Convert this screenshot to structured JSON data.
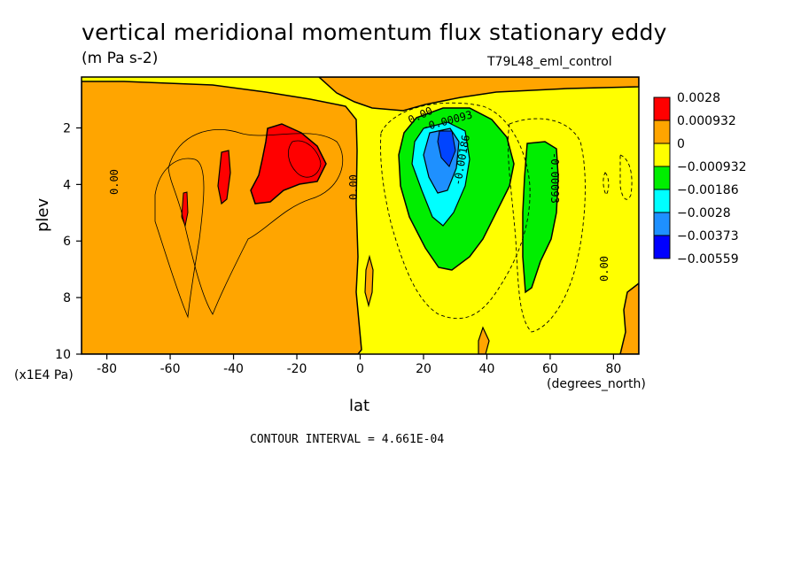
{
  "chart_data": {
    "type": "heatmap",
    "title": "vertical meridional momentum flux stationary eddy",
    "units": "(m Pa s-2)",
    "run_label": "T79L48_eml_control",
    "xlabel": "lat",
    "x_units": "(degrees_north)",
    "ylabel": "plev",
    "y_units": "(x1E4 Pa)",
    "xlim": [
      -88,
      88
    ],
    "ylim": [
      10,
      0.2
    ],
    "x_ticks": [
      -80,
      -60,
      -40,
      -20,
      0,
      20,
      40,
      60,
      80
    ],
    "y_ticks": [
      2,
      4,
      6,
      8,
      10
    ],
    "colorbar": {
      "levels": [
        "0.0028",
        "0.000932",
        "0",
        "−0.000932",
        "−0.00186",
        "−0.0028",
        "−0.00373",
        "−0.00559"
      ],
      "colors": [
        "#ff0000",
        "#ffa500",
        "#ffff00",
        "#00ee00",
        "#00ffff",
        "#1e90ff",
        "#0000ff"
      ]
    },
    "contour_labels": [
      "0.00",
      "0.00",
      "0.00",
      "-0.00093",
      "-0.00186",
      "-0.00093",
      "0.00"
    ],
    "contour_interval": "CONTOUR INTERVAL = 4.661E-04"
  }
}
